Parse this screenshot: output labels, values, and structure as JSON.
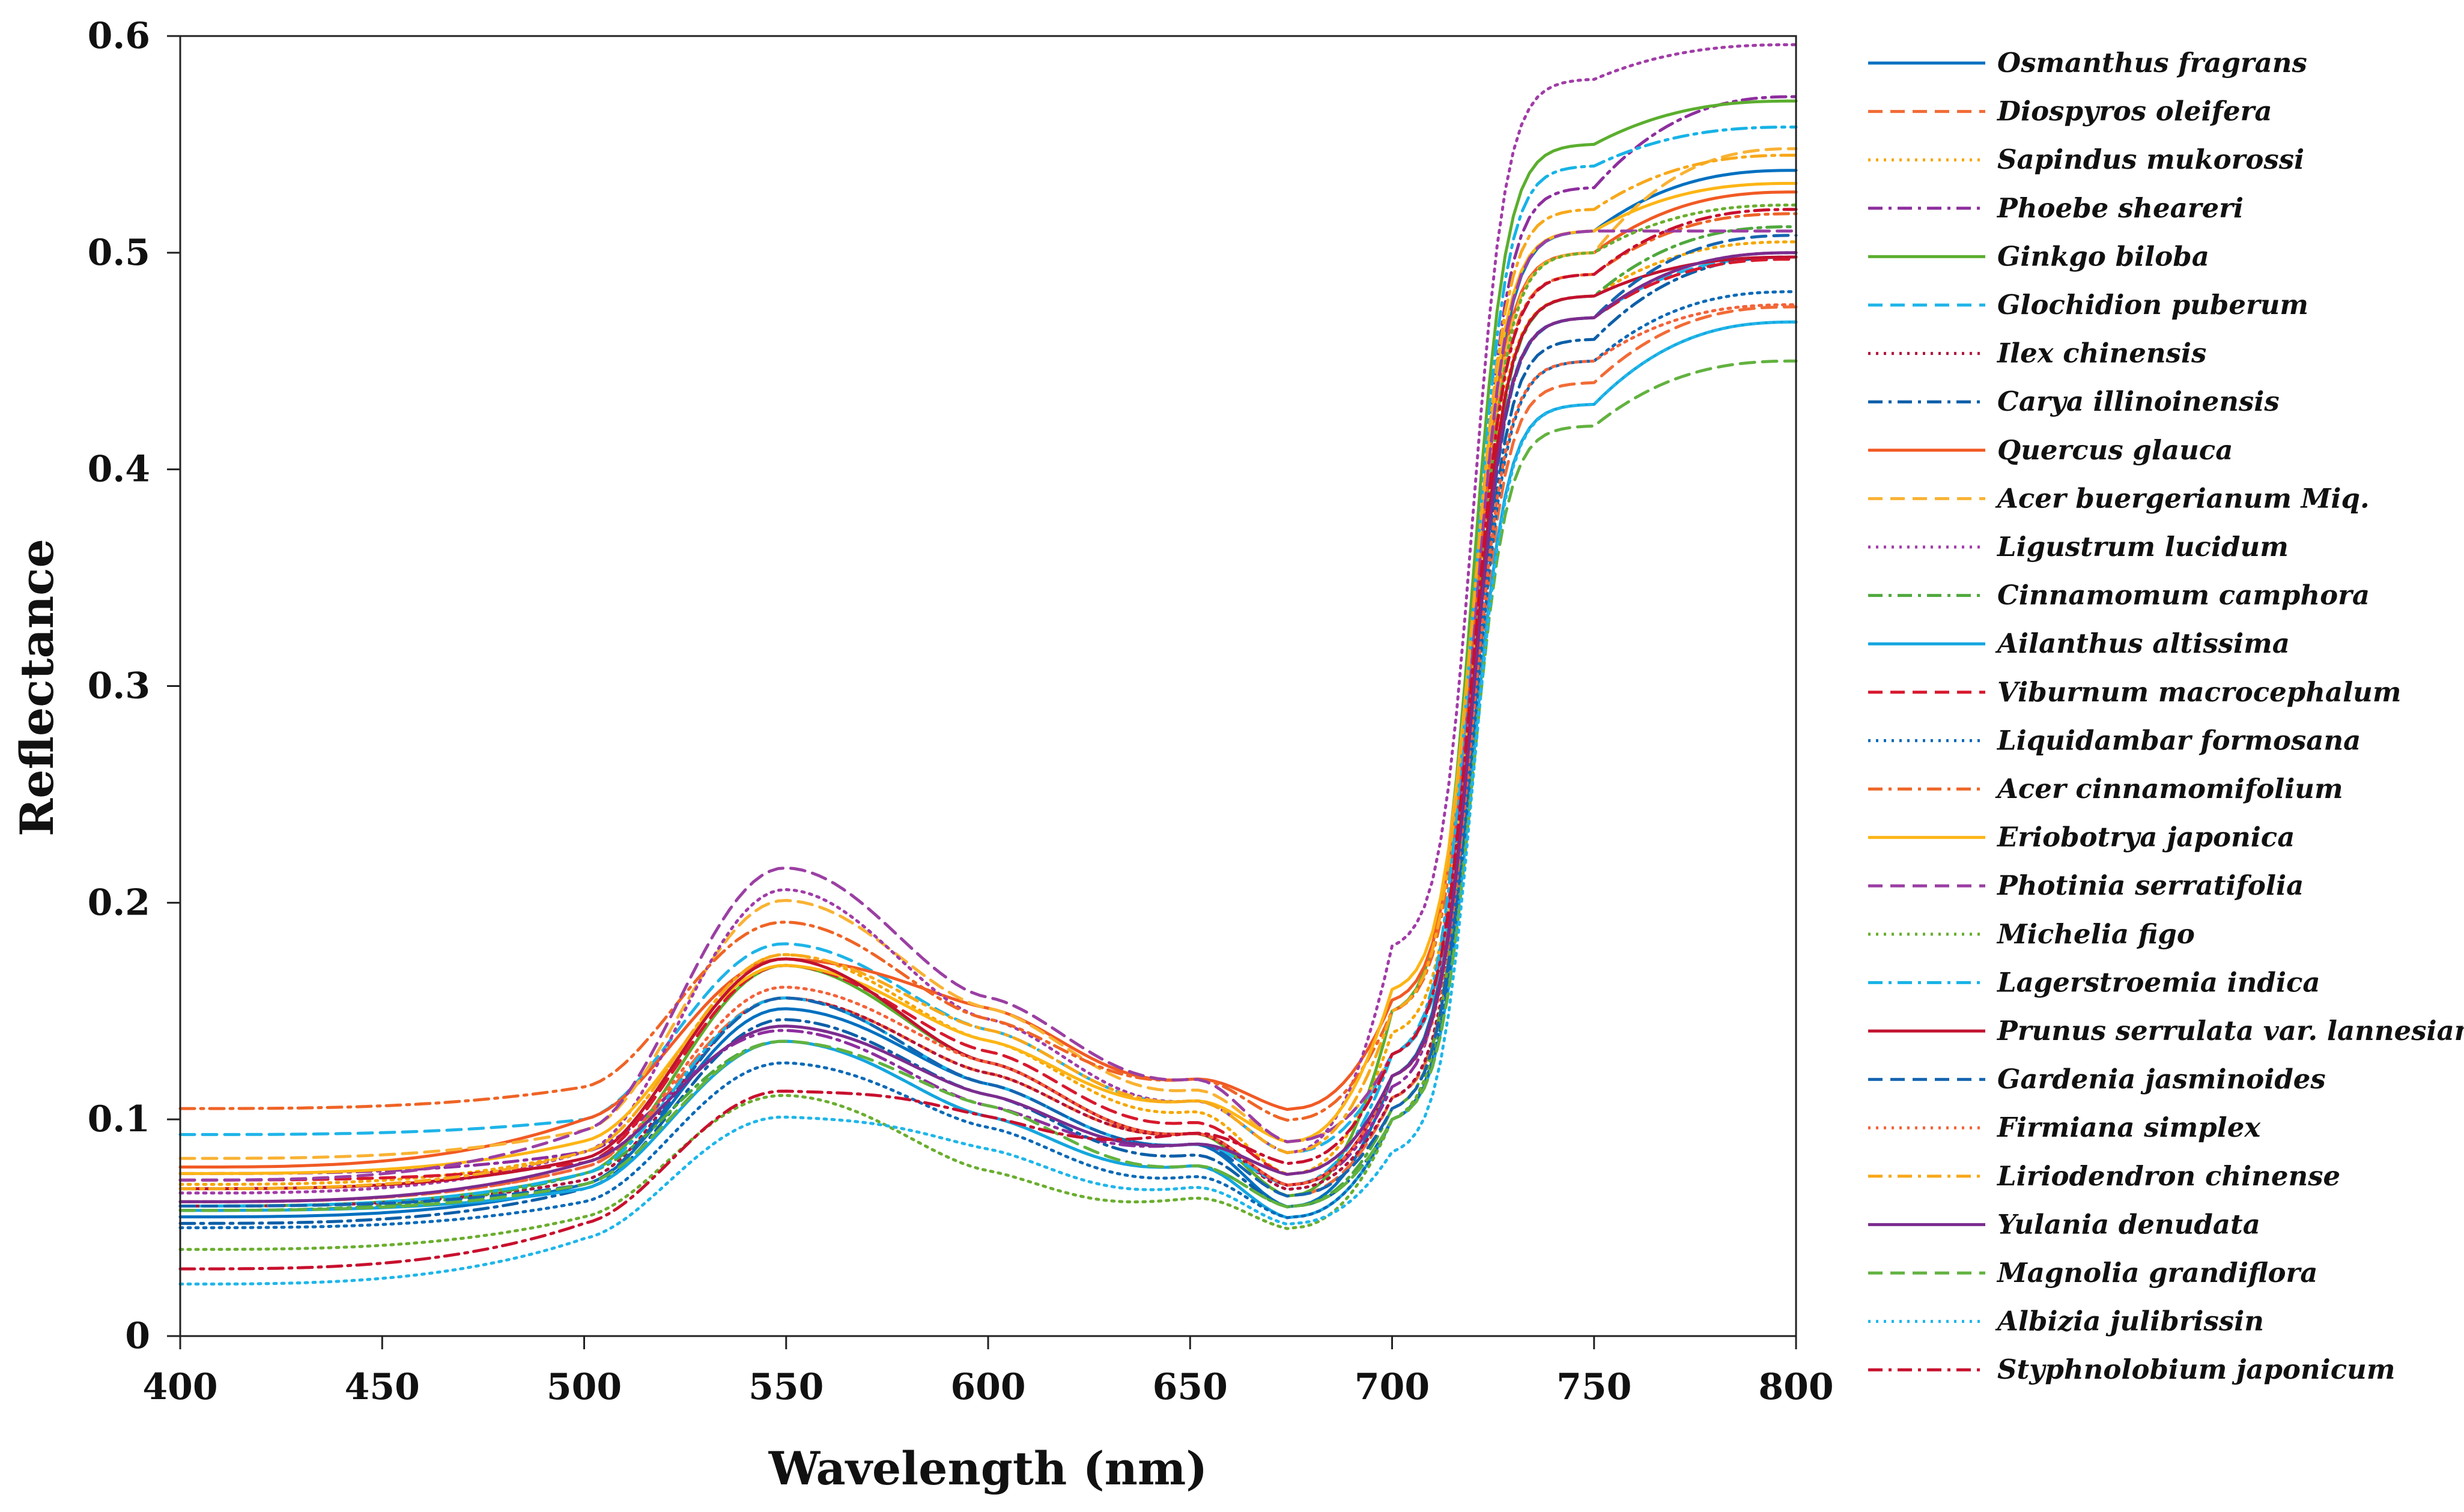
{
  "chart_data": {
    "type": "line",
    "xlabel": "Wavelength (nm)",
    "ylabel": "Reflectance",
    "xlim": [
      400,
      800
    ],
    "ylim": [
      0,
      0.6
    ],
    "xticks": [
      400,
      450,
      500,
      550,
      600,
      650,
      700,
      750,
      800
    ],
    "yticks": [
      0,
      0.1,
      0.2,
      0.3,
      0.4,
      0.5,
      0.6
    ],
    "ytick_labels": [
      "0",
      "0.1",
      "0.2",
      "0.3",
      "0.4",
      "0.5",
      "0.6"
    ],
    "grid": false,
    "legend_position": "right",
    "series": [
      {
        "name": "Osmanthus fragrans",
        "color": "#0070C0",
        "dash": "solid",
        "values": {
          "400": 0.055,
          "500": 0.07,
          "550": 0.155,
          "600": 0.115,
          "650": 0.085,
          "675": 0.06,
          "700": 0.12,
          "750": 0.51,
          "800": 0.538
        }
      },
      {
        "name": "Diospyros oleifera",
        "color": "#F26B36",
        "dash": "dash",
        "values": {
          "400": 0.062,
          "500": 0.078,
          "550": 0.16,
          "600": 0.12,
          "650": 0.09,
          "675": 0.065,
          "700": 0.11,
          "750": 0.44,
          "800": 0.475
        }
      },
      {
        "name": "Sapindus mukorossi",
        "color": "#F5A700",
        "dash": "dot",
        "values": {
          "400": 0.07,
          "500": 0.085,
          "550": 0.18,
          "600": 0.135,
          "650": 0.1,
          "675": 0.075,
          "700": 0.14,
          "750": 0.48,
          "800": 0.505
        }
      },
      {
        "name": "Phoebe sheareri",
        "color": "#8E2E9E",
        "dash": "dashdot",
        "values": {
          "400": 0.075,
          "500": 0.085,
          "550": 0.145,
          "600": 0.105,
          "650": 0.085,
          "675": 0.07,
          "700": 0.115,
          "750": 0.53,
          "800": 0.572
        }
      },
      {
        "name": "Ginkgo biloba",
        "color": "#5BAE2E",
        "dash": "solid",
        "values": {
          "400": 0.06,
          "500": 0.075,
          "550": 0.175,
          "600": 0.125,
          "650": 0.09,
          "675": 0.065,
          "700": 0.15,
          "750": 0.55,
          "800": 0.57
        }
      },
      {
        "name": "Glochidion puberum",
        "color": "#1EB4E8",
        "dash": "dash",
        "values": {
          "400": 0.093,
          "500": 0.1,
          "550": 0.185,
          "600": 0.14,
          "650": 0.105,
          "675": 0.085,
          "700": 0.13,
          "750": 0.47,
          "800": 0.498
        }
      },
      {
        "name": "Ilex chinensis",
        "color": "#B0123C",
        "dash": "dot",
        "values": {
          "400": 0.06,
          "500": 0.072,
          "550": 0.16,
          "600": 0.12,
          "650": 0.09,
          "675": 0.068,
          "700": 0.11,
          "750": 0.47,
          "800": 0.5
        }
      },
      {
        "name": "Carya illinoinensis",
        "color": "#0D5FA8",
        "dash": "dashdot",
        "values": {
          "400": 0.052,
          "500": 0.068,
          "550": 0.15,
          "600": 0.11,
          "650": 0.08,
          "675": 0.06,
          "700": 0.1,
          "750": 0.46,
          "800": 0.498
        }
      },
      {
        "name": "Quercus glauca",
        "color": "#F15A24",
        "dash": "solid",
        "values": {
          "400": 0.078,
          "500": 0.1,
          "550": 0.178,
          "600": 0.15,
          "650": 0.115,
          "675": 0.105,
          "700": 0.155,
          "750": 0.5,
          "800": 0.528
        }
      },
      {
        "name": "Acer buergerianum Miq.",
        "color": "#F9B233",
        "dash": "dash",
        "values": {
          "400": 0.082,
          "500": 0.095,
          "550": 0.205,
          "600": 0.15,
          "650": 0.11,
          "675": 0.09,
          "700": 0.13,
          "750": 0.5,
          "800": 0.548
        }
      },
      {
        "name": "Ligustrum lucidum",
        "color": "#A13CA8",
        "dash": "dot",
        "values": {
          "400": 0.066,
          "500": 0.085,
          "550": 0.21,
          "600": 0.145,
          "650": 0.105,
          "675": 0.085,
          "700": 0.18,
          "750": 0.58,
          "800": 0.596
        }
      },
      {
        "name": "Cinnamomum camphora",
        "color": "#4FA83D",
        "dash": "dashdot",
        "values": {
          "400": 0.058,
          "500": 0.075,
          "550": 0.14,
          "600": 0.1,
          "650": 0.075,
          "675": 0.06,
          "700": 0.105,
          "750": 0.48,
          "800": 0.512
        }
      },
      {
        "name": "Ailanthus altissima",
        "color": "#14A6E0",
        "dash": "solid",
        "values": {
          "400": 0.058,
          "500": 0.068,
          "550": 0.14,
          "600": 0.1,
          "650": 0.075,
          "675": 0.055,
          "700": 0.1,
          "750": 0.43,
          "800": 0.468
        }
      },
      {
        "name": "Viburnum macrocephalum",
        "color": "#D7192E",
        "dash": "dash",
        "values": {
          "400": 0.072,
          "500": 0.08,
          "550": 0.175,
          "600": 0.13,
          "650": 0.095,
          "675": 0.075,
          "700": 0.12,
          "750": 0.47,
          "800": 0.497
        }
      },
      {
        "name": "Liquidambar formosana",
        "color": "#0B6AB8",
        "dash": "dot",
        "values": {
          "400": 0.05,
          "500": 0.062,
          "550": 0.13,
          "600": 0.095,
          "650": 0.07,
          "675": 0.055,
          "700": 0.1,
          "750": 0.45,
          "800": 0.482
        }
      },
      {
        "name": "Acer cinnamomifolium",
        "color": "#EF6426",
        "dash": "dashdot",
        "values": {
          "400": 0.105,
          "500": 0.115,
          "550": 0.195,
          "600": 0.145,
          "650": 0.115,
          "675": 0.1,
          "700": 0.15,
          "750": 0.49,
          "800": 0.518
        }
      },
      {
        "name": "Eriobotrya japonica",
        "color": "#FDB515",
        "dash": "solid",
        "values": {
          "400": 0.075,
          "500": 0.09,
          "550": 0.175,
          "600": 0.135,
          "650": 0.105,
          "675": 0.09,
          "700": 0.16,
          "750": 0.51,
          "800": 0.532
        }
      },
      {
        "name": "Photinia serratifolia",
        "color": "#9B3FA3",
        "dash": "dash",
        "values": {
          "400": 0.072,
          "500": 0.095,
          "550": 0.22,
          "600": 0.155,
          "650": 0.115,
          "675": 0.09,
          "700": 0.13,
          "750": 0.51,
          "800": 0.51
        }
      },
      {
        "name": "Michelia figo",
        "color": "#6AAE2F",
        "dash": "dot",
        "values": {
          "400": 0.04,
          "500": 0.055,
          "550": 0.115,
          "600": 0.075,
          "650": 0.06,
          "675": 0.05,
          "700": 0.1,
          "750": 0.5,
          "800": 0.522
        }
      },
      {
        "name": "Lagerstroemia indica",
        "color": "#16B3E6",
        "dash": "dashdot",
        "values": {
          "400": 0.06,
          "500": 0.075,
          "550": 0.16,
          "600": 0.115,
          "650": 0.085,
          "675": 0.07,
          "700": 0.13,
          "750": 0.54,
          "800": 0.558
        }
      },
      {
        "name": "Prunus serrulata var. lannesiana",
        "color": "#C1122F",
        "dash": "solid",
        "values": {
          "400": 0.068,
          "500": 0.082,
          "550": 0.178,
          "600": 0.125,
          "650": 0.09,
          "675": 0.07,
          "700": 0.12,
          "750": 0.48,
          "800": 0.498
        }
      },
      {
        "name": "Gardenia jasminoides",
        "color": "#1565B0",
        "dash": "dash",
        "values": {
          "400": 0.06,
          "500": 0.07,
          "550": 0.16,
          "600": 0.115,
          "650": 0.085,
          "675": 0.065,
          "700": 0.105,
          "750": 0.47,
          "800": 0.508
        }
      },
      {
        "name": "Firmiana simplex",
        "color": "#F4623A",
        "dash": "dot",
        "values": {
          "400": 0.062,
          "500": 0.078,
          "550": 0.165,
          "600": 0.125,
          "650": 0.09,
          "675": 0.07,
          "700": 0.12,
          "750": 0.45,
          "800": 0.476
        }
      },
      {
        "name": "Liriodendron chinense",
        "color": "#F7A81B",
        "dash": "dashdot",
        "values": {
          "400": 0.068,
          "500": 0.085,
          "550": 0.18,
          "600": 0.14,
          "650": 0.105,
          "675": 0.085,
          "700": 0.15,
          "750": 0.52,
          "800": 0.545
        }
      },
      {
        "name": "Yulania denudata",
        "color": "#7B2C8E",
        "dash": "solid",
        "values": {
          "400": 0.062,
          "500": 0.08,
          "550": 0.147,
          "600": 0.11,
          "650": 0.085,
          "675": 0.075,
          "700": 0.12,
          "750": 0.47,
          "800": 0.5
        }
      },
      {
        "name": "Magnolia grandiflora",
        "color": "#62B23F",
        "dash": "dash",
        "values": {
          "400": 0.058,
          "500": 0.07,
          "550": 0.14,
          "600": 0.105,
          "650": 0.075,
          "675": 0.06,
          "700": 0.1,
          "750": 0.42,
          "800": 0.45
        }
      },
      {
        "name": "Albizia julibrissin",
        "color": "#1FB6E9",
        "dash": "dot",
        "values": {
          "400": 0.024,
          "500": 0.045,
          "550": 0.105,
          "600": 0.085,
          "650": 0.065,
          "675": 0.052,
          "700": 0.085,
          "750": 0.43,
          "800": 0.468
        }
      },
      {
        "name": "Styphnolobium japonicum",
        "color": "#C8102E",
        "dash": "dashdot",
        "values": {
          "400": 0.031,
          "500": 0.052,
          "550": 0.117,
          "600": 0.1,
          "650": 0.09,
          "675": 0.08,
          "700": 0.13,
          "750": 0.49,
          "800": 0.52
        }
      }
    ]
  }
}
